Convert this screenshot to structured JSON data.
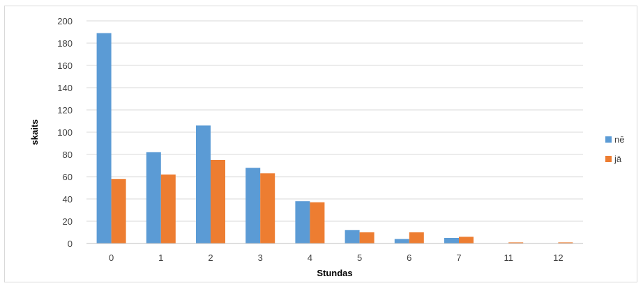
{
  "chart_data": {
    "type": "bar",
    "title": "",
    "xlabel": "Stundas",
    "ylabel": "skaits",
    "categories": [
      "0",
      "1",
      "2",
      "3",
      "4",
      "5",
      "6",
      "7",
      "11",
      "12"
    ],
    "series": [
      {
        "name": "nē",
        "color": "#5b9bd5",
        "values": [
          189,
          82,
          106,
          68,
          38,
          12,
          4,
          5,
          0,
          0
        ]
      },
      {
        "name": "jā",
        "color": "#ed7d31",
        "values": [
          58,
          62,
          75,
          63,
          37,
          10,
          10,
          6,
          1,
          1
        ]
      }
    ],
    "ylim": [
      0,
      200
    ],
    "yticks": [
      0,
      20,
      40,
      60,
      80,
      100,
      120,
      140,
      160,
      180,
      200
    ],
    "grid": true,
    "legend_position": "right"
  }
}
